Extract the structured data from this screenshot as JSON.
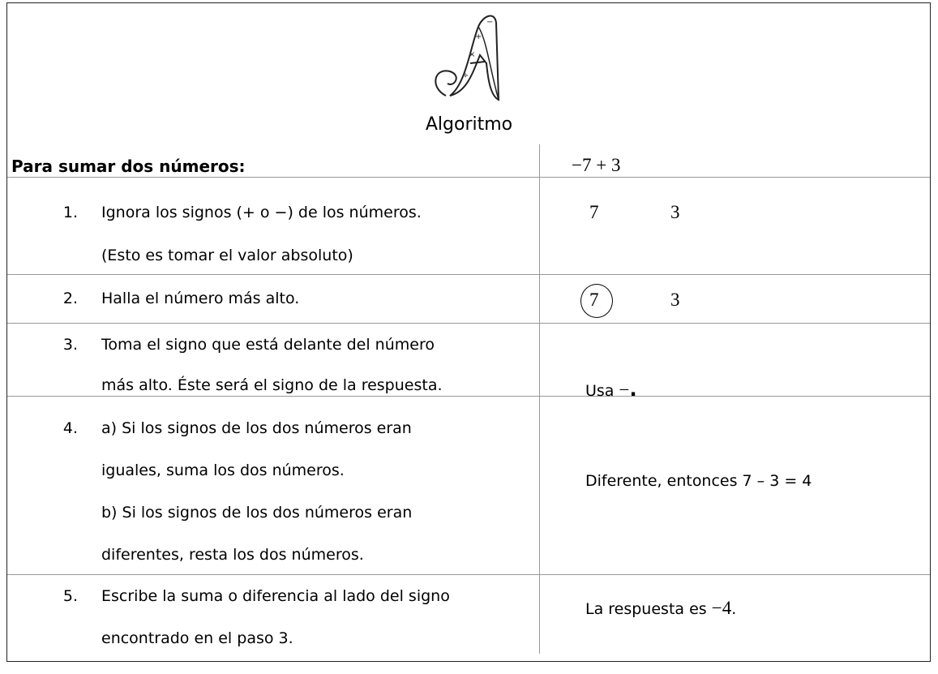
{
  "header": {
    "title": "Algoritmo"
  },
  "table": {
    "heading": "Para sumar dos números:",
    "example": "−7 + 3",
    "rows": [
      {
        "number": "1.",
        "lines": [
          "Ignora los signos (+ o −) de los números.",
          "(Esto es tomar el valor absoluto)"
        ],
        "example": [
          "7",
          "3"
        ]
      },
      {
        "number": "2.",
        "lines": [
          "Halla el número más alto."
        ],
        "example": [
          "7",
          "3"
        ]
      },
      {
        "number": "3.",
        "lines": [
          "Toma el signo que está delante del número",
          "más alto. Éste será el signo de la respuesta."
        ],
        "example": [
          "Usa",
          "−",
          "."
        ]
      },
      {
        "number": "4.",
        "lines": [
          "a)   Si los signos de los dos números eran",
          "iguales, suma los dos números.",
          "b)  Si los signos de los dos números eran",
          "diferentes, resta los dos números."
        ],
        "example": [
          "Diferente, entonces 7 – 3 = 4"
        ]
      },
      {
        "number": "5.",
        "lines": [
          "Escribe la suma o diferencia al lado del signo",
          "encontrado en el paso 3."
        ],
        "example": [
          "La respuesta es",
          "−4",
          "."
        ]
      }
    ]
  }
}
